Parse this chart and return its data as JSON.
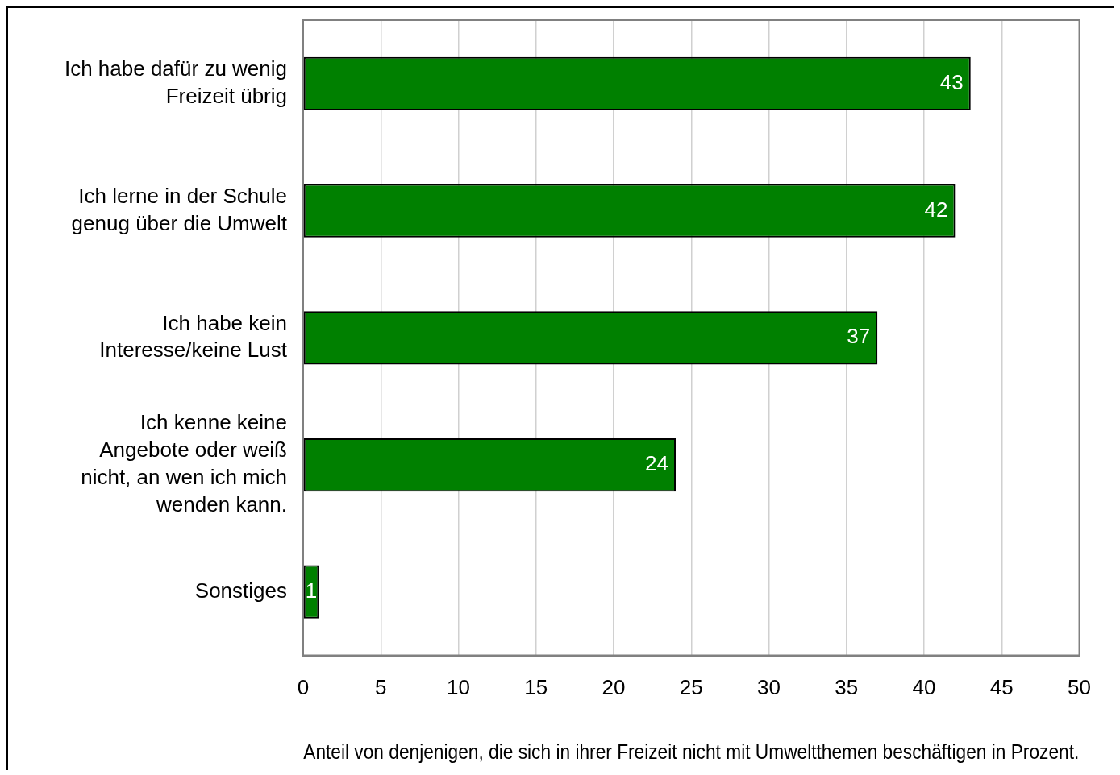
{
  "chart_data": {
    "type": "bar",
    "orientation": "horizontal",
    "categories": [
      "Ich habe dafür zu wenig Freizeit übrig",
      "Ich lerne in der Schule genug über die Umwelt",
      "Ich habe kein Interesse/keine Lust",
      "Ich kenne keine Angebote oder weiß nicht, an wen ich mich wenden kann.",
      "Sonstiges"
    ],
    "values": [
      43,
      42,
      37,
      24,
      1
    ],
    "color": "#008000",
    "xlim": [
      0,
      50
    ],
    "xticks": [
      0,
      5,
      10,
      15,
      20,
      25,
      30,
      35,
      40,
      45,
      50
    ],
    "xlabel": "Anteil von denjenigen, die sich in ihrer Freizeit nicht mit Umweltthemen beschäftigen in Prozent.",
    "grid": "x",
    "data_labels": true
  }
}
